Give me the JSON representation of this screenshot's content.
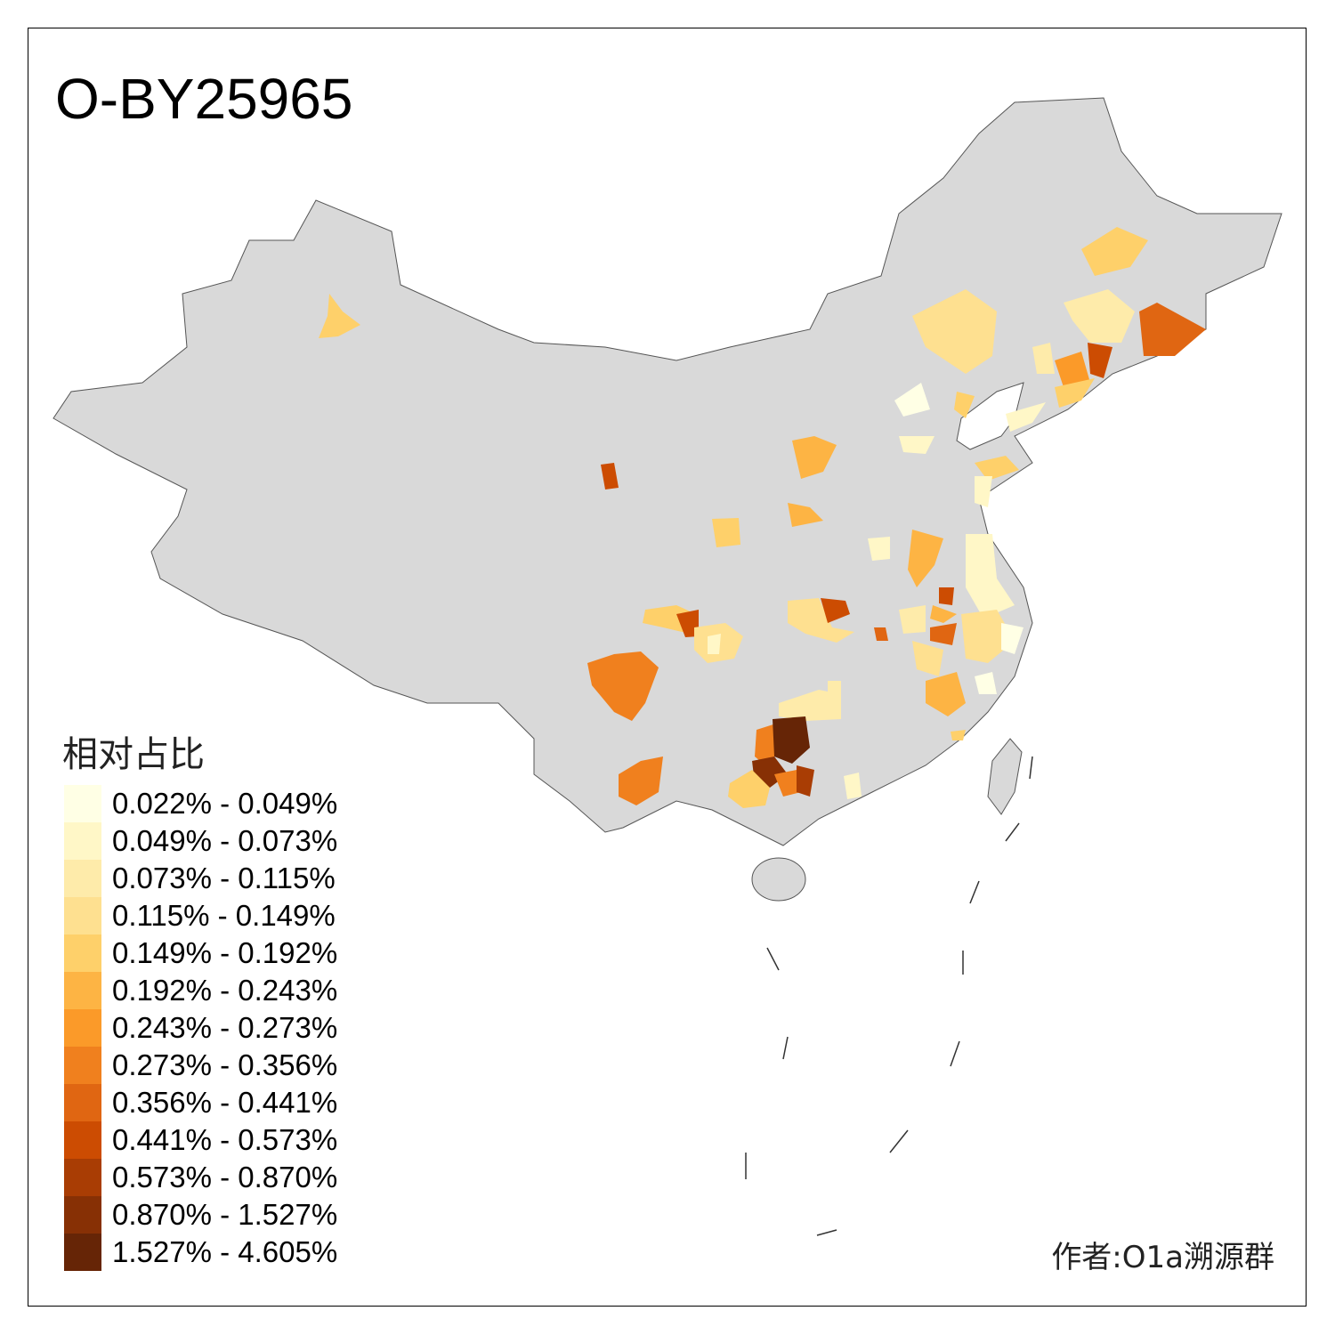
{
  "title": "O-BY25965",
  "legend": {
    "title": "相对占比",
    "items": [
      {
        "label": "0.022% - 0.049%",
        "color": "#FFFFE5"
      },
      {
        "label": "0.049% - 0.073%",
        "color": "#FFF7C7"
      },
      {
        "label": "0.073% - 0.115%",
        "color": "#FEEBAA"
      },
      {
        "label": "0.115% - 0.149%",
        "color": "#FEE090"
      },
      {
        "label": "0.149% - 0.192%",
        "color": "#FED06A"
      },
      {
        "label": "0.192% - 0.243%",
        "color": "#FDB444"
      },
      {
        "label": "0.243% - 0.273%",
        "color": "#FB9A29"
      },
      {
        "label": "0.273% - 0.356%",
        "color": "#F0801E"
      },
      {
        "label": "0.356% - 0.441%",
        "color": "#E06612"
      },
      {
        "label": "0.441% - 0.573%",
        "color": "#CC4C02"
      },
      {
        "label": "0.573% - 0.870%",
        "color": "#A93D04"
      },
      {
        "label": "0.870% - 1.527%",
        "color": "#873005"
      },
      {
        "label": "1.527% - 4.605%",
        "color": "#662506"
      }
    ]
  },
  "base_color": "#D9D9D9",
  "author": "作者:O1a溯源群"
}
